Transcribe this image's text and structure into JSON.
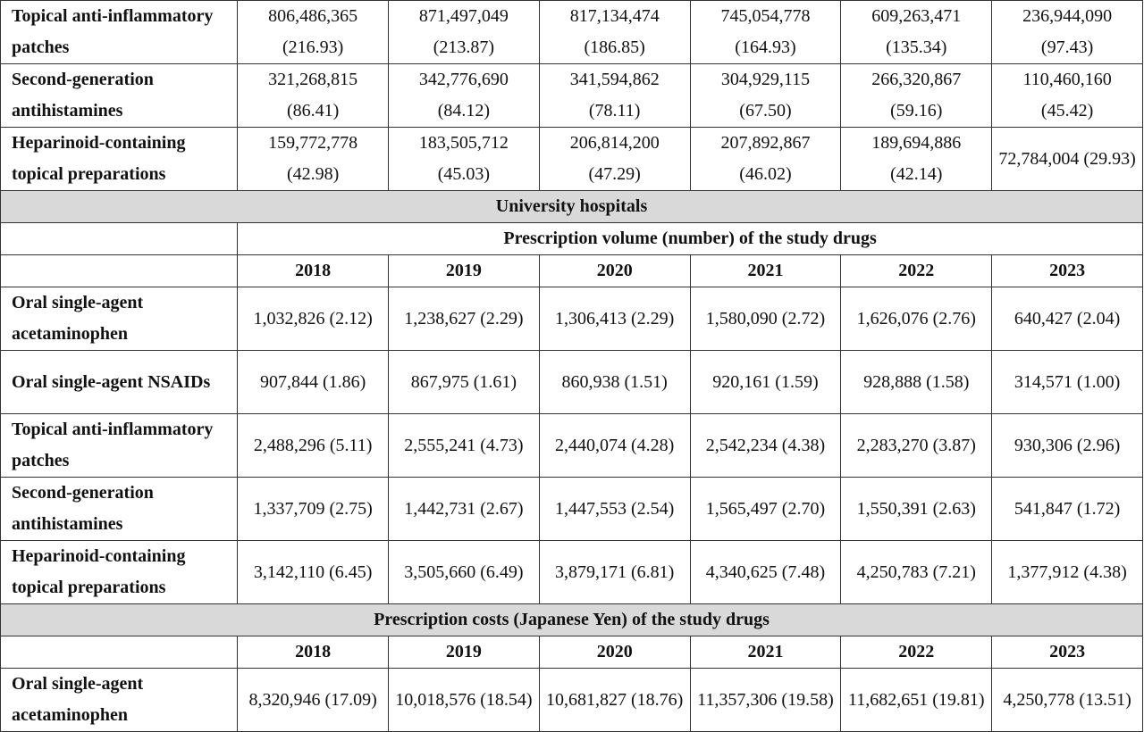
{
  "top_block": {
    "rows": [
      {
        "label": "Topical anti-inflammatory patches",
        "values": [
          "806,486,365 (216.93)",
          "871,497,049 (213.87)",
          "817,134,474 (186.85)",
          "745,054,778 (164.93)",
          "609,263,471 (135.34)",
          "236,944,090 (97.43)"
        ]
      },
      {
        "label": "Second-generation antihistamines",
        "values": [
          "321,268,815 (86.41)",
          "342,776,690 (84.12)",
          "341,594,862 (78.11)",
          "304,929,115 (67.50)",
          "266,320,867 (59.16)",
          "110,460,160 (45.42)"
        ]
      },
      {
        "label": "Heparinoid-containing topical preparations",
        "values": [
          "159,772,778 (42.98)",
          "183,505,712 (45.03)",
          "206,814,200 (47.29)",
          "207,892,867 (46.02)",
          "189,694,886 (42.14)",
          "72,784,004 (29.93)"
        ]
      }
    ]
  },
  "section_title": "University hospitals",
  "volume": {
    "title": "Prescription volume (number) of the study drugs",
    "years": [
      "2018",
      "2019",
      "2020",
      "2021",
      "2022",
      "2023"
    ],
    "rows": [
      {
        "label": "Oral single-agent acetaminophen",
        "values": [
          "1,032,826 (2.12)",
          "1,238,627 (2.29)",
          "1,306,413 (2.29)",
          "1,580,090 (2.72)",
          "1,626,076 (2.76)",
          "640,427 (2.04)"
        ]
      },
      {
        "label": "Oral single-agent NSAIDs",
        "values": [
          "907,844 (1.86)",
          "867,975 (1.61)",
          "860,938 (1.51)",
          "920,161 (1.59)",
          "928,888 (1.58)",
          "314,571 (1.00)"
        ]
      },
      {
        "label": "Topical anti-inflammatory patches",
        "values": [
          "2,488,296 (5.11)",
          "2,555,241 (4.73)",
          "2,440,074 (4.28)",
          "2,542,234 (4.38)",
          "2,283,270 (3.87)",
          "930,306 (2.96)"
        ]
      },
      {
        "label": "Second-generation antihistamines",
        "values": [
          "1,337,709 (2.75)",
          "1,442,731 (2.67)",
          "1,447,553 (2.54)",
          "1,565,497 (2.70)",
          "1,550,391 (2.63)",
          "541,847 (1.72)"
        ]
      },
      {
        "label": "Heparinoid-containing topical preparations",
        "values": [
          "3,142,110 (6.45)",
          "3,505,660 (6.49)",
          "3,879,171 (6.81)",
          "4,340,625 (7.48)",
          "4,250,783 (7.21)",
          "1,377,912 (4.38)"
        ]
      }
    ]
  },
  "costs": {
    "title": "Prescription costs (Japanese Yen) of the study drugs",
    "years": [
      "2018",
      "2019",
      "2020",
      "2021",
      "2022",
      "2023"
    ],
    "rows": [
      {
        "label": "Oral single-agent acetaminophen",
        "values": [
          "8,320,946 (17.09)",
          "10,018,576 (18.54)",
          "10,681,827 (18.76)",
          "11,357,306 (19.58)",
          "11,682,651 (19.81)",
          "4,250,778 (13.51)"
        ]
      }
    ]
  },
  "colors": {
    "section_band": "#d9d9d9",
    "border": "#333333",
    "text": "#111111"
  }
}
